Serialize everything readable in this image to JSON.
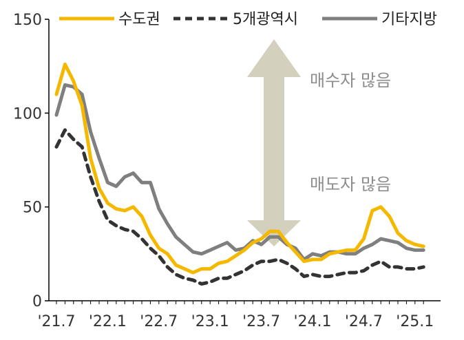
{
  "chart_data": {
    "type": "line",
    "title": "",
    "xlabel": "",
    "ylabel": "",
    "ylim": [
      0,
      150
    ],
    "yticks": [
      0,
      50,
      100,
      150
    ],
    "grid": false,
    "legend_placement": "top",
    "x_tick_labels": [
      "'21.7",
      "'22.1",
      "'22.7",
      "'23.1",
      "'23.7",
      "'24.1",
      "'24.7",
      "'25.1"
    ],
    "x_tick_index_step": 6,
    "n_points": 44,
    "annotations": {
      "upper": "매수자 많음",
      "lower": "매도자 많음"
    },
    "series": [
      {
        "name": "수도권",
        "color": "#f5b800",
        "dash": "solid",
        "values": [
          110,
          126,
          117,
          104,
          76,
          60,
          52,
          49,
          48,
          50,
          45,
          35,
          28,
          25,
          19,
          17,
          15,
          17,
          17,
          20,
          21,
          24,
          27,
          31,
          33,
          37,
          37,
          31,
          26,
          21,
          22,
          22,
          25,
          26,
          27,
          27,
          33,
          48,
          50,
          45,
          36,
          32,
          30,
          29
        ]
      },
      {
        "name": "5개광역시",
        "color": "#333333",
        "dash": "dashed",
        "values": [
          82,
          91,
          86,
          82,
          66,
          53,
          43,
          40,
          38,
          37,
          33,
          28,
          24,
          18,
          14,
          12,
          11,
          9,
          10,
          12,
          12,
          14,
          16,
          19,
          21,
          21,
          22,
          20,
          17,
          13,
          14,
          13,
          13,
          14,
          15,
          15,
          16,
          19,
          21,
          18,
          18,
          17,
          17,
          18
        ]
      },
      {
        "name": "기타지방",
        "color": "#7f7f7f",
        "dash": "solid",
        "values": [
          99,
          115,
          114,
          110,
          90,
          76,
          63,
          61,
          66,
          68,
          63,
          63,
          49,
          41,
          34,
          30,
          26,
          25,
          27,
          29,
          31,
          27,
          28,
          32,
          30,
          34,
          34,
          30,
          28,
          22,
          25,
          24,
          26,
          26,
          25,
          25,
          28,
          30,
          33,
          32,
          31,
          28,
          27,
          27
        ]
      }
    ]
  }
}
